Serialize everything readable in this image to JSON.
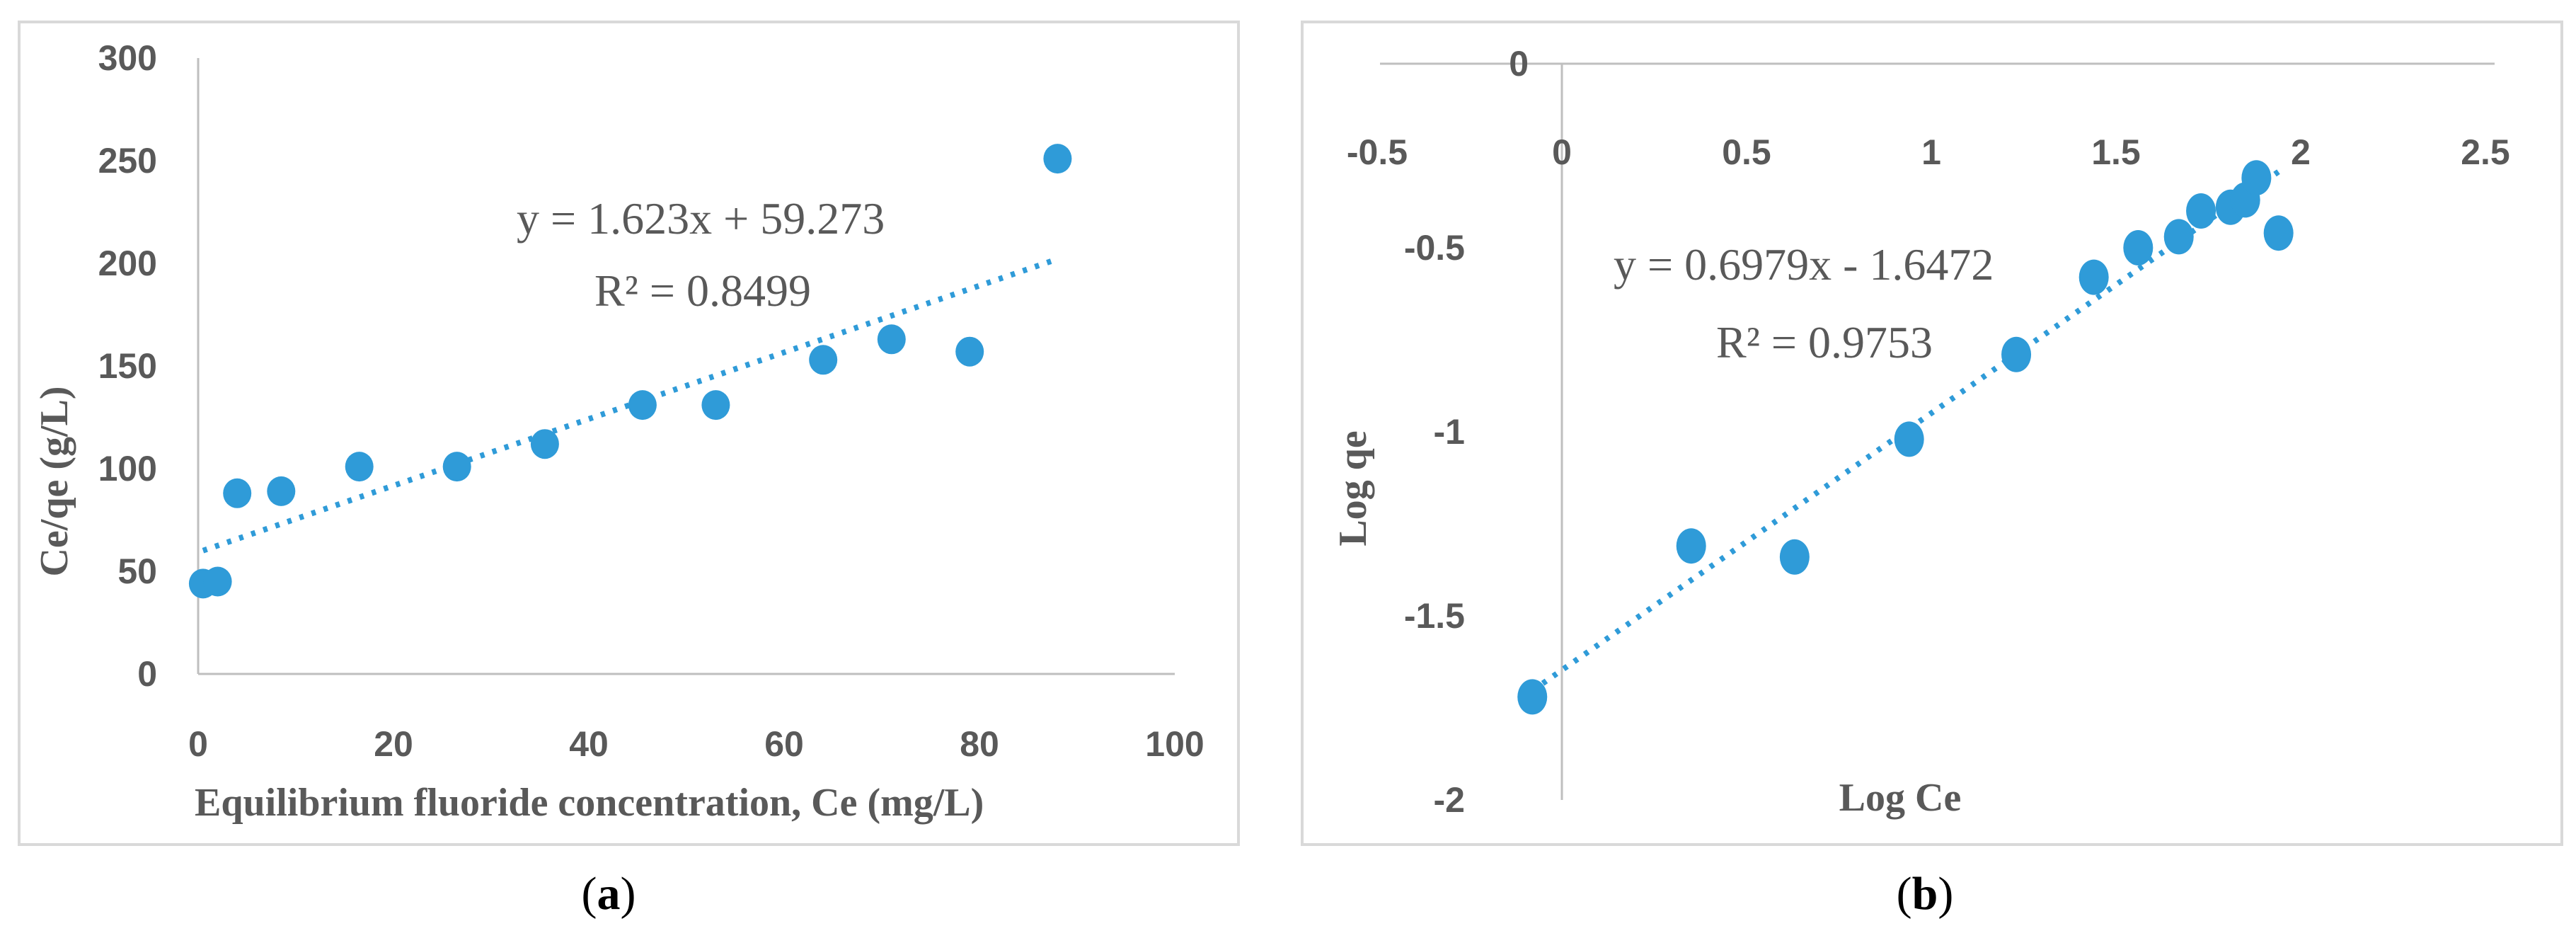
{
  "colors": {
    "marker": "#2f9bd8",
    "trend": "#2f9bd8",
    "text": "#595959",
    "frame": "#d9d9d9",
    "axis": "#bfbfbf"
  },
  "chart_data": [
    {
      "type": "scatter",
      "panel_label_prefix": "(",
      "panel_label_letter": "a",
      "panel_label_suffix": ")",
      "xlabel": "Equilibrium  fluoride concentration, Ce (mg/L)",
      "ylabel": "Ce/qe (g/L)",
      "xlim": [
        0,
        100
      ],
      "ylim": [
        0,
        300
      ],
      "xticks": [
        "0",
        "20",
        "40",
        "60",
        "80",
        "100"
      ],
      "yticks": [
        "0",
        "50",
        "100",
        "150",
        "200",
        "250",
        "300"
      ],
      "points": [
        {
          "x": 0.5,
          "y": 44
        },
        {
          "x": 2,
          "y": 45
        },
        {
          "x": 4,
          "y": 88
        },
        {
          "x": 8.5,
          "y": 89
        },
        {
          "x": 16.5,
          "y": 101
        },
        {
          "x": 26.5,
          "y": 101
        },
        {
          "x": 35.5,
          "y": 112
        },
        {
          "x": 45.5,
          "y": 131
        },
        {
          "x": 53,
          "y": 131
        },
        {
          "x": 64,
          "y": 153
        },
        {
          "x": 71,
          "y": 163
        },
        {
          "x": 79,
          "y": 157
        },
        {
          "x": 88,
          "y": 251
        }
      ],
      "trendline": {
        "slope": 1.623,
        "intercept": 59.273,
        "x_start": 0.5,
        "x_end": 88
      },
      "equation": "y = 1.623x + 59.273",
      "r_squared": "R² = 0.8499"
    },
    {
      "type": "scatter",
      "panel_label_prefix": "(",
      "panel_label_letter": "b",
      "panel_label_suffix": ")",
      "xlabel": "Log Ce",
      "ylabel": "Log qe",
      "xlim": [
        -0.5,
        2.5
      ],
      "ylim": [
        -2,
        0
      ],
      "xticks": [
        "-0.5",
        "0",
        "0.5",
        "1",
        "1.5",
        "2",
        "2.5"
      ],
      "yticks": [
        "0",
        "-0.5",
        "-1",
        "-1.5",
        "-2"
      ],
      "points": [
        {
          "x": -0.08,
          "y": -1.72
        },
        {
          "x": 0.35,
          "y": -1.31
        },
        {
          "x": 0.63,
          "y": -1.34
        },
        {
          "x": 0.94,
          "y": -1.02
        },
        {
          "x": 1.23,
          "y": -0.79
        },
        {
          "x": 1.44,
          "y": -0.58
        },
        {
          "x": 1.56,
          "y": -0.5
        },
        {
          "x": 1.67,
          "y": -0.47
        },
        {
          "x": 1.73,
          "y": -0.4
        },
        {
          "x": 1.81,
          "y": -0.39
        },
        {
          "x": 1.85,
          "y": -0.37
        },
        {
          "x": 1.88,
          "y": -0.31
        },
        {
          "x": 1.94,
          "y": -0.46
        }
      ],
      "trendline": {
        "slope": 0.6979,
        "intercept": -1.6472,
        "x_start": -0.08,
        "x_end": 1.94
      },
      "equation": "y = 0.6979x - 1.6472",
      "r_squared": "R² = 0.9753"
    }
  ]
}
